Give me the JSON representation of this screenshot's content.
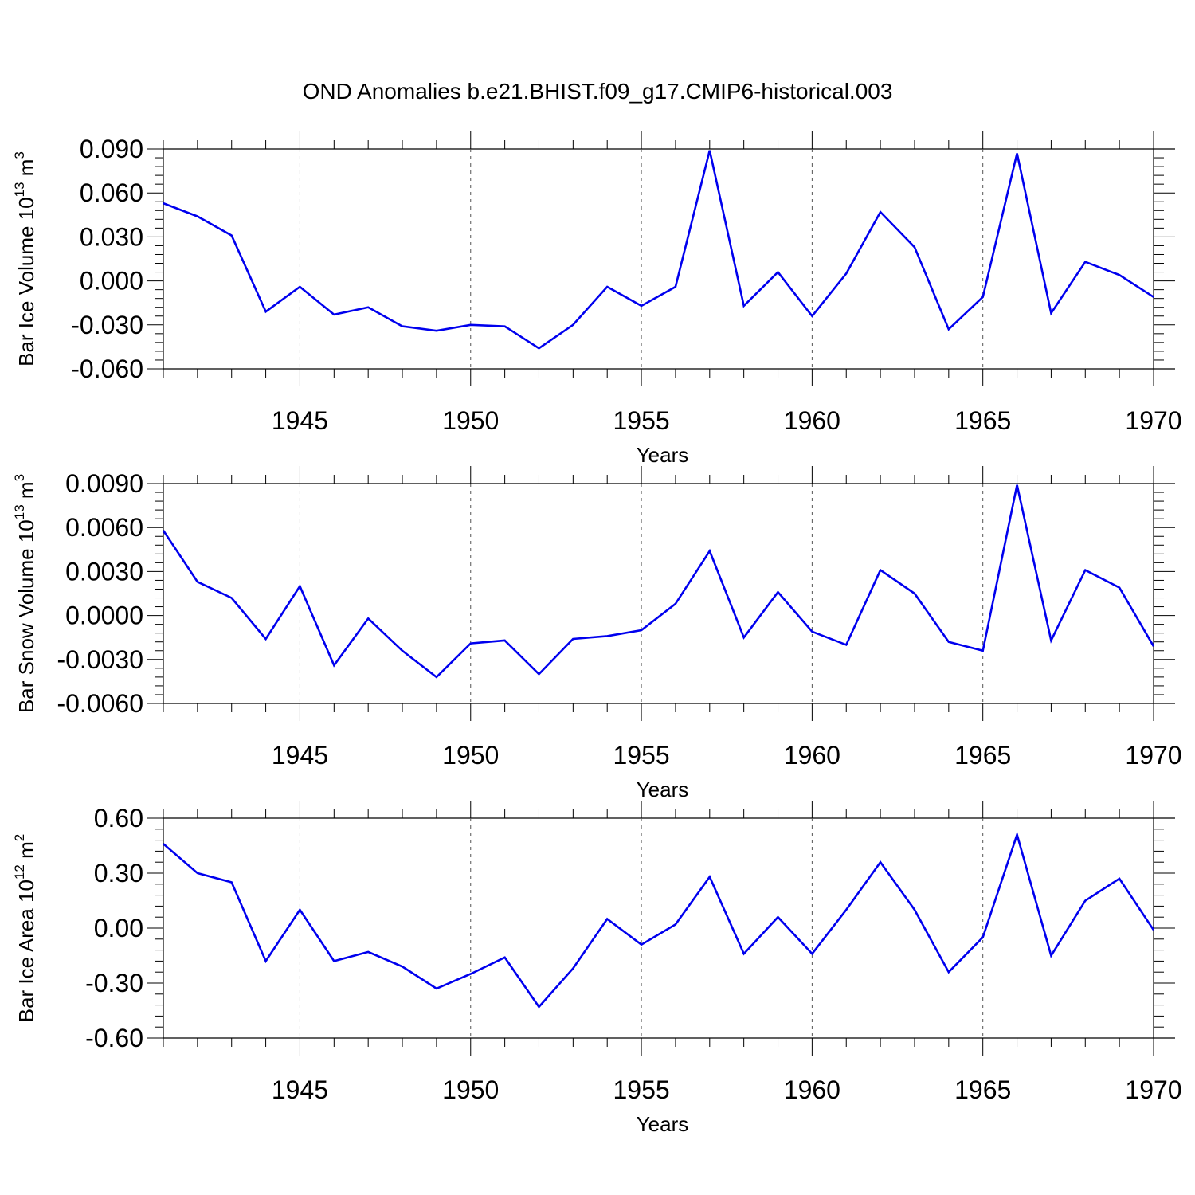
{
  "title": "OND Anomalies b.e21.BHIST.f09_g17.CMIP6-historical.003",
  "line_color": "#0000ee",
  "chart_data": [
    {
      "type": "line",
      "ylabel": "Bar Ice Volume 10",
      "ylabel_exp": "13",
      "ylabel_unit": " m",
      "ylabel_unit_exp": "3",
      "xlabel": "Years",
      "xlim": [
        1941,
        1970
      ],
      "ylim": [
        -0.06,
        0.09
      ],
      "yticks": [
        -0.06,
        -0.03,
        0.0,
        0.03,
        0.06,
        0.09
      ],
      "ytick_labels": [
        "-0.060",
        "-0.030",
        "0.000",
        "0.030",
        "0.060",
        "0.090"
      ],
      "xticks": [
        1945,
        1950,
        1955,
        1960,
        1965,
        1970
      ],
      "xtick_labels": [
        "1945",
        "1950",
        "1955",
        "1960",
        "1965",
        "1970"
      ],
      "x": [
        1941,
        1942,
        1943,
        1944,
        1945,
        1946,
        1947,
        1948,
        1949,
        1950,
        1951,
        1952,
        1953,
        1954,
        1955,
        1956,
        1957,
        1958,
        1959,
        1960,
        1961,
        1962,
        1963,
        1964,
        1965,
        1966,
        1967,
        1968,
        1969,
        1970
      ],
      "y": [
        0.053,
        0.044,
        0.031,
        -0.021,
        -0.004,
        -0.023,
        -0.018,
        -0.031,
        -0.034,
        -0.03,
        -0.031,
        -0.046,
        -0.03,
        -0.004,
        -0.017,
        -0.004,
        0.089,
        -0.017,
        0.006,
        -0.024,
        0.005,
        0.047,
        0.023,
        -0.033,
        -0.011,
        0.087,
        -0.022,
        0.013,
        0.004,
        -0.011
      ]
    },
    {
      "type": "line",
      "ylabel": "Bar Snow Volume 10",
      "ylabel_exp": "13",
      "ylabel_unit": " m",
      "ylabel_unit_exp": "3",
      "xlabel": "Years",
      "xlim": [
        1941,
        1970
      ],
      "ylim": [
        -0.006,
        0.009
      ],
      "yticks": [
        -0.006,
        -0.003,
        0.0,
        0.003,
        0.006,
        0.009
      ],
      "ytick_labels": [
        "-0.0060",
        "-0.0030",
        "0.0000",
        "0.0030",
        "0.0060",
        "0.0090"
      ],
      "xticks": [
        1945,
        1950,
        1955,
        1960,
        1965,
        1970
      ],
      "xtick_labels": [
        "1945",
        "1950",
        "1955",
        "1960",
        "1965",
        "1970"
      ],
      "x": [
        1941,
        1942,
        1943,
        1944,
        1945,
        1946,
        1947,
        1948,
        1949,
        1950,
        1951,
        1952,
        1953,
        1954,
        1955,
        1956,
        1957,
        1958,
        1959,
        1960,
        1961,
        1962,
        1963,
        1964,
        1965,
        1966,
        1967,
        1968,
        1969,
        1970
      ],
      "y": [
        0.0058,
        0.0023,
        0.0012,
        -0.0016,
        0.002,
        -0.0034,
        -0.0002,
        -0.0024,
        -0.0042,
        -0.0019,
        -0.0017,
        -0.004,
        -0.0016,
        -0.0014,
        -0.001,
        0.0008,
        0.0044,
        -0.0015,
        0.0016,
        -0.0011,
        -0.002,
        0.0031,
        0.0015,
        -0.0018,
        -0.0024,
        0.0089,
        -0.0017,
        0.0031,
        0.0019,
        -0.0021
      ]
    },
    {
      "type": "line",
      "ylabel": "Bar Ice Area 10",
      "ylabel_exp": "12",
      "ylabel_unit": " m",
      "ylabel_unit_exp": "2",
      "xlabel": "Years",
      "xlim": [
        1941,
        1970
      ],
      "ylim": [
        -0.6,
        0.6
      ],
      "yticks": [
        -0.6,
        -0.3,
        0.0,
        0.3,
        0.6
      ],
      "ytick_labels": [
        "-0.60",
        "-0.30",
        "0.00",
        "0.30",
        "0.60"
      ],
      "xticks": [
        1945,
        1950,
        1955,
        1960,
        1965,
        1970
      ],
      "xtick_labels": [
        "1945",
        "1950",
        "1955",
        "1960",
        "1965",
        "1970"
      ],
      "x": [
        1941,
        1942,
        1943,
        1944,
        1945,
        1946,
        1947,
        1948,
        1949,
        1950,
        1951,
        1952,
        1953,
        1954,
        1955,
        1956,
        1957,
        1958,
        1959,
        1960,
        1961,
        1962,
        1963,
        1964,
        1965,
        1966,
        1967,
        1968,
        1969,
        1970
      ],
      "y": [
        0.46,
        0.3,
        0.25,
        -0.18,
        0.1,
        -0.18,
        -0.13,
        -0.21,
        -0.33,
        -0.25,
        -0.16,
        -0.43,
        -0.22,
        0.05,
        -0.09,
        0.02,
        0.28,
        -0.14,
        0.06,
        -0.14,
        0.1,
        0.36,
        0.1,
        -0.24,
        -0.05,
        0.51,
        -0.15,
        0.15,
        0.27,
        -0.01
      ]
    }
  ]
}
